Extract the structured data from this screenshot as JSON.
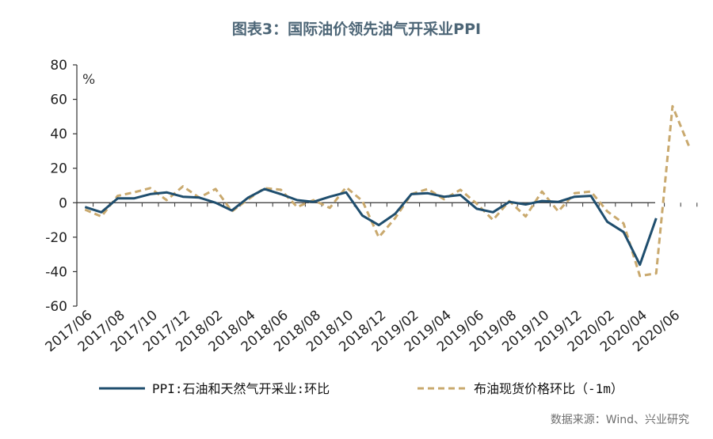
{
  "title": "图表3：国际油价领先油气开采业PPI",
  "source": "数据来源：Wind、兴业研究",
  "chart_data": {
    "type": "line",
    "ylabel": "%",
    "ylim": [
      -60,
      80
    ],
    "yticks": [
      80,
      60,
      40,
      20,
      0,
      -20,
      -40,
      -60
    ],
    "x": [
      "2017/06",
      "2017/07",
      "2017/08",
      "2017/09",
      "2017/10",
      "2017/11",
      "2017/12",
      "2018/01",
      "2018/02",
      "2018/03",
      "2018/04",
      "2018/05",
      "2018/06",
      "2018/07",
      "2018/08",
      "2018/09",
      "2018/10",
      "2018/11",
      "2018/12",
      "2019/01",
      "2019/02",
      "2019/03",
      "2019/04",
      "2019/05",
      "2019/06",
      "2019/07",
      "2019/08",
      "2019/09",
      "2019/10",
      "2019/11",
      "2019/12",
      "2020/01",
      "2020/02",
      "2020/03",
      "2020/04",
      "2020/05",
      "2020/06",
      "2020/07"
    ],
    "xtick_labels": [
      "2017/06",
      "2017/08",
      "2017/10",
      "2017/12",
      "2018/02",
      "2018/04",
      "2018/06",
      "2018/08",
      "2018/10",
      "2018/12",
      "2019/02",
      "2019/04",
      "2019/06",
      "2019/08",
      "2019/10",
      "2019/12",
      "2020/02",
      "2020/04",
      "2020/06"
    ],
    "series": [
      {
        "name": "PPI:石油和天然气开采业:环比",
        "color": "#1f4e6e",
        "style": "solid",
        "values": [
          -2.5,
          -5.5,
          2.5,
          2.5,
          5,
          6,
          3.5,
          3,
          0,
          -4.5,
          3,
          8,
          5,
          1.5,
          0.5,
          3.5,
          6,
          -7.5,
          -13,
          -6.5,
          5,
          5.5,
          3.5,
          4.5,
          -3.5,
          -5.5,
          0.5,
          -1,
          1,
          0.5,
          3.5,
          4,
          -11,
          -17,
          -36,
          -9,
          null,
          null
        ]
      },
      {
        "name": "布油现货价格环比（-1m）",
        "color": "#c9a96e",
        "style": "dashed",
        "values": [
          -4,
          -8,
          4,
          6,
          8.5,
          1.5,
          9.5,
          3,
          8,
          -5,
          2,
          8.5,
          7.5,
          -2.5,
          1.5,
          -3,
          9,
          1,
          -20,
          -9,
          5,
          8,
          2,
          7.5,
          -0.5,
          -10,
          1,
          -8,
          6.5,
          -5,
          5.5,
          6.5,
          -5,
          -12,
          -42.5,
          -41,
          56,
          33
        ]
      }
    ]
  }
}
